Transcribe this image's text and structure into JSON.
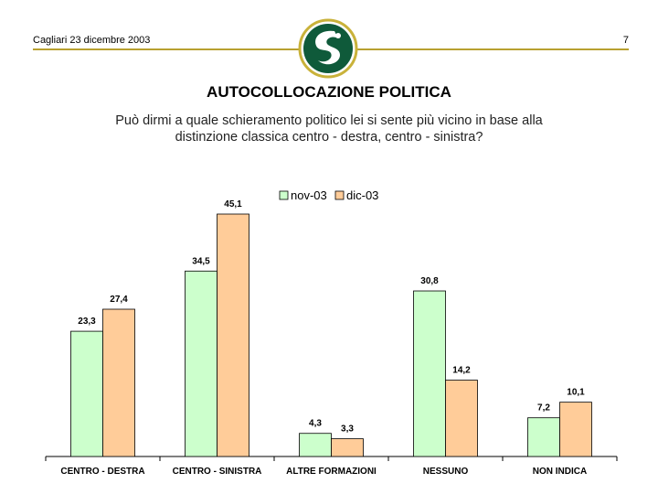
{
  "header": {
    "date_place": "Cagliari 23 dicembre 2003",
    "page_number": "7"
  },
  "logo": {
    "name": "circular-logo"
  },
  "title": "AUTOCOLLOCAZIONE POLITICA",
  "subtitle_line1": "Può dirmi a quale schieramento politico lei si sente più vicino in base alla",
  "subtitle_line2": "distinzione classica centro - destra, centro - sinistra?",
  "colors": {
    "accent_rule": "#b8a030",
    "series_nov": "#ccffcc",
    "series_dic": "#ffcc99",
    "bar_stroke": "#000000"
  },
  "chart_data": {
    "type": "bar",
    "categories": [
      "CENTRO - DESTRA",
      "CENTRO - SINISTRA",
      "ALTRE FORMAZIONI",
      "NESSUNO",
      "NON INDICA"
    ],
    "series": [
      {
        "name": "nov-03",
        "values": [
          23.3,
          34.5,
          4.3,
          30.8,
          7.2
        ],
        "labels": [
          "23,3",
          "34,5",
          "4,3",
          "30,8",
          "7,2"
        ],
        "color": "#ccffcc"
      },
      {
        "name": "dic-03",
        "values": [
          27.4,
          45.1,
          3.3,
          14.2,
          10.1
        ],
        "labels": [
          "27,4",
          "45,1",
          "3,3",
          "14,2",
          "10,1"
        ],
        "color": "#ffcc99"
      }
    ],
    "legend_position": "top-center",
    "grid": false,
    "ylim": [
      0,
      50
    ]
  }
}
